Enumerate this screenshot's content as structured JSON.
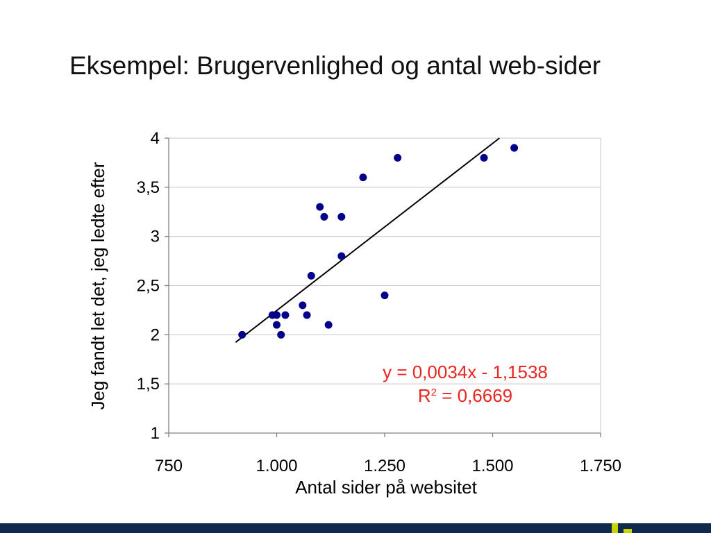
{
  "slide": {
    "title": "Eksempel: Brugervenlighed og antal web-sider"
  },
  "chart_data": {
    "type": "scatter",
    "title": "",
    "xlabel": "Antal sider på websitet",
    "ylabel": "Jeg fandt let det, jeg ledte efter",
    "xlim": [
      750,
      1750
    ],
    "ylim": [
      1,
      4
    ],
    "x_ticks": [
      750,
      1000,
      1250,
      1500,
      1750
    ],
    "x_tick_labels": [
      "750",
      "1.000",
      "1.250",
      "1.500",
      "1.750"
    ],
    "y_ticks": [
      1,
      1.5,
      2,
      2.5,
      3,
      3.5,
      4
    ],
    "y_tick_labels": [
      "1",
      "1,5",
      "2",
      "2,5",
      "3",
      "3,5",
      "4"
    ],
    "grid": "horizontal",
    "marker_color": "#00008b",
    "points": [
      {
        "x": 920,
        "y": 2.0
      },
      {
        "x": 990,
        "y": 2.2
      },
      {
        "x": 1000,
        "y": 2.2
      },
      {
        "x": 1000,
        "y": 2.1
      },
      {
        "x": 1010,
        "y": 2.0
      },
      {
        "x": 1020,
        "y": 2.2
      },
      {
        "x": 1060,
        "y": 2.3
      },
      {
        "x": 1070,
        "y": 2.2
      },
      {
        "x": 1080,
        "y": 2.6
      },
      {
        "x": 1100,
        "y": 3.3
      },
      {
        "x": 1110,
        "y": 3.2
      },
      {
        "x": 1120,
        "y": 2.1
      },
      {
        "x": 1150,
        "y": 3.2
      },
      {
        "x": 1150,
        "y": 2.8
      },
      {
        "x": 1200,
        "y": 3.6
      },
      {
        "x": 1250,
        "y": 2.4
      },
      {
        "x": 1280,
        "y": 3.8
      },
      {
        "x": 1480,
        "y": 3.8
      },
      {
        "x": 1550,
        "y": 3.9
      }
    ],
    "trendline": {
      "slope": 0.0034,
      "intercept": -1.1538,
      "color": "#000000",
      "equation": "y = 0,0034x - 1,1538",
      "r2_prefix": "R",
      "r2_exp": "2",
      "r2_value": " = 0,6669",
      "label_color": "#e8251f"
    }
  },
  "footer": {
    "bar_color": "#0f2a4d",
    "accent_color": "#c8d400"
  }
}
